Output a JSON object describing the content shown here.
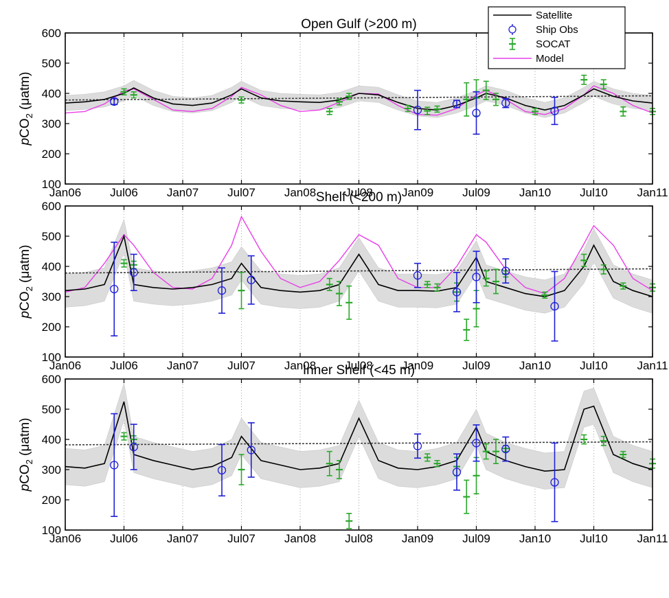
{
  "figure": {
    "legend": {
      "placement": "top-right",
      "entries": [
        {
          "label": "Satellite",
          "color": "#000000",
          "kind": "line"
        },
        {
          "label": "Ship Obs",
          "color": "#1f1fd6",
          "kind": "circle-errorbar"
        },
        {
          "label": "SOCAT",
          "color": "#2aa82a",
          "kind": "plus-errorbar"
        },
        {
          "label": "Model",
          "color": "#e83ee8",
          "kind": "line"
        }
      ]
    },
    "ylabel_prefix": "pCO",
    "ylabel_sub": "2",
    "ylabel_unit": " (μatm)",
    "colors": {
      "satellite": "#000000",
      "ship": "#1f1fd6",
      "socat": "#2aa82a",
      "model": "#e83ee8",
      "band": "#dcdcdc",
      "trend": "#404040"
    }
  },
  "chart_data": [
    {
      "type": "line",
      "title": "Open Gulf (>200 m)",
      "ylabel": "pCO2 (μatm)",
      "ylim": [
        100,
        600
      ],
      "yticks": [
        100,
        200,
        300,
        400,
        500,
        600
      ],
      "xlim": [
        "2006-01",
        "2011-01"
      ],
      "xticks": [
        "Jan06",
        "Jul06",
        "Jan07",
        "Jul07",
        "Jan08",
        "Jul08",
        "Jan09",
        "Jul09",
        "Jan10",
        "Jul10",
        "Jan11"
      ],
      "trend": {
        "start": 378,
        "end": 392
      },
      "series": [
        {
          "name": "Satellite",
          "band": 25,
          "x": [
            "2006-01",
            "2006-03",
            "2006-05",
            "2006-07",
            "2006-08",
            "2006-10",
            "2006-12",
            "2007-02",
            "2007-04",
            "2007-06",
            "2007-07",
            "2007-09",
            "2007-11",
            "2008-01",
            "2008-03",
            "2008-05",
            "2008-07",
            "2008-09",
            "2008-11",
            "2009-01",
            "2009-03",
            "2009-05",
            "2009-07",
            "2009-08",
            "2009-10",
            "2009-12",
            "2010-02",
            "2010-04",
            "2010-06",
            "2010-07",
            "2010-09",
            "2010-11",
            "2011-01"
          ],
          "y": [
            368,
            372,
            380,
            400,
            418,
            385,
            365,
            360,
            368,
            395,
            415,
            385,
            375,
            372,
            370,
            378,
            400,
            395,
            370,
            350,
            345,
            360,
            385,
            400,
            385,
            360,
            345,
            360,
            395,
            415,
            390,
            375,
            368
          ]
        },
        {
          "name": "Model",
          "x": [
            "2006-01",
            "2006-03",
            "2006-05",
            "2006-07",
            "2006-08",
            "2006-10",
            "2006-12",
            "2007-02",
            "2007-04",
            "2007-06",
            "2007-07",
            "2007-09",
            "2007-11",
            "2008-01",
            "2008-03",
            "2008-05",
            "2008-07",
            "2008-09",
            "2008-11",
            "2009-01",
            "2009-03",
            "2009-05",
            "2009-07",
            "2009-08",
            "2009-10",
            "2009-12",
            "2010-02",
            "2010-04",
            "2010-06",
            "2010-07",
            "2010-09",
            "2010-11",
            "2011-01"
          ],
          "y": [
            335,
            340,
            365,
            408,
            415,
            380,
            345,
            340,
            350,
            390,
            420,
            395,
            360,
            340,
            345,
            370,
            400,
            398,
            360,
            330,
            328,
            350,
            395,
            410,
            380,
            340,
            330,
            350,
            395,
            425,
            400,
            360,
            335
          ]
        },
        {
          "name": "Ship Obs",
          "x": [
            "2006-06",
            "2009-01",
            "2009-05",
            "2009-07",
            "2009-10",
            "2010-03"
          ],
          "y": [
            373,
            345,
            365,
            335,
            368,
            342
          ],
          "err": [
            10,
            65,
            12,
            70,
            15,
            45
          ]
        },
        {
          "name": "SOCAT",
          "x": [
            "2006-07",
            "2006-08",
            "2007-07",
            "2008-04",
            "2008-05",
            "2008-06",
            "2008-12",
            "2009-02",
            "2009-03",
            "2009-06",
            "2009-07",
            "2009-08",
            "2009-09",
            "2010-01",
            "2010-06",
            "2010-08",
            "2010-10",
            "2011-01"
          ],
          "y": [
            405,
            395,
            378,
            340,
            372,
            390,
            350,
            342,
            348,
            380,
            385,
            410,
            380,
            340,
            445,
            430,
            340,
            340
          ],
          "err": [
            10,
            10,
            10,
            10,
            10,
            10,
            10,
            12,
            10,
            55,
            60,
            30,
            20,
            10,
            15,
            15,
            15,
            10
          ]
        }
      ]
    },
    {
      "type": "line",
      "title": "Shelf (<200 m)",
      "ylabel": "pCO2 (μatm)",
      "ylim": [
        100,
        600
      ],
      "yticks": [
        100,
        200,
        300,
        400,
        500,
        600
      ],
      "xlim": [
        "2006-01",
        "2011-01"
      ],
      "xticks": [
        "Jan06",
        "Jul06",
        "Jan07",
        "Jul07",
        "Jan08",
        "Jul08",
        "Jan09",
        "Jul09",
        "Jan10",
        "Jul10",
        "Jan11"
      ],
      "trend": {
        "start": 378,
        "end": 392
      },
      "series": [
        {
          "name": "Satellite",
          "band": 55,
          "x": [
            "2006-01",
            "2006-03",
            "2006-05",
            "2006-07",
            "2006-08",
            "2006-10",
            "2006-12",
            "2007-02",
            "2007-04",
            "2007-06",
            "2007-07",
            "2007-09",
            "2007-11",
            "2008-01",
            "2008-03",
            "2008-05",
            "2008-07",
            "2008-09",
            "2008-11",
            "2009-01",
            "2009-03",
            "2009-05",
            "2009-07",
            "2009-08",
            "2009-10",
            "2009-12",
            "2010-02",
            "2010-04",
            "2010-06",
            "2010-07",
            "2010-09",
            "2010-11",
            "2011-01"
          ],
          "y": [
            320,
            325,
            340,
            500,
            340,
            330,
            325,
            330,
            340,
            360,
            410,
            330,
            320,
            315,
            320,
            340,
            440,
            340,
            320,
            320,
            318,
            330,
            430,
            350,
            330,
            310,
            300,
            320,
            400,
            470,
            350,
            320,
            300
          ]
        },
        {
          "name": "Model",
          "x": [
            "2006-01",
            "2006-03",
            "2006-05",
            "2006-07",
            "2006-08",
            "2006-10",
            "2006-12",
            "2007-02",
            "2007-04",
            "2007-06",
            "2007-07",
            "2007-09",
            "2007-11",
            "2008-01",
            "2008-03",
            "2008-05",
            "2008-07",
            "2008-09",
            "2008-11",
            "2009-01",
            "2009-03",
            "2009-05",
            "2009-07",
            "2009-08",
            "2009-10",
            "2009-12",
            "2010-02",
            "2010-04",
            "2010-06",
            "2010-07",
            "2010-09",
            "2010-11",
            "2011-01"
          ],
          "y": [
            315,
            330,
            410,
            505,
            470,
            380,
            330,
            325,
            360,
            470,
            565,
            450,
            360,
            330,
            350,
            420,
            505,
            470,
            360,
            330,
            330,
            400,
            505,
            480,
            390,
            330,
            310,
            360,
            475,
            535,
            470,
            360,
            320
          ]
        },
        {
          "name": "Ship Obs",
          "x": [
            "2006-06",
            "2006-08",
            "2007-05",
            "2007-08",
            "2009-01",
            "2009-05",
            "2009-07",
            "2009-10",
            "2010-03"
          ],
          "y": [
            325,
            380,
            320,
            355,
            370,
            315,
            365,
            385,
            268
          ],
          "err": [
            155,
            60,
            75,
            80,
            40,
            65,
            85,
            40,
            115
          ]
        },
        {
          "name": "SOCAT",
          "x": [
            "2006-07",
            "2006-08",
            "2007-07",
            "2008-04",
            "2008-05",
            "2008-06",
            "2009-02",
            "2009-03",
            "2009-05",
            "2009-06",
            "2009-07",
            "2009-08",
            "2009-09",
            "2009-10",
            "2010-02",
            "2010-06",
            "2010-08",
            "2010-10",
            "2011-01"
          ],
          "y": [
            410,
            405,
            320,
            340,
            310,
            280,
            340,
            330,
            315,
            190,
            260,
            360,
            350,
            375,
            305,
            420,
            390,
            335,
            330
          ],
          "err": [
            12,
            12,
            60,
            20,
            40,
            55,
            10,
            12,
            30,
            35,
            60,
            25,
            40,
            10,
            10,
            20,
            15,
            10,
            12
          ]
        }
      ]
    },
    {
      "type": "line",
      "title": "Inner Shelf (<45 m)",
      "ylabel": "pCO2 (μatm)",
      "ylim": [
        100,
        600
      ],
      "yticks": [
        100,
        200,
        300,
        400,
        500,
        600
      ],
      "xlim": [
        "2006-01",
        "2011-01"
      ],
      "xticks": [
        "Jan06",
        "Jul06",
        "Jan07",
        "Jul07",
        "Jan08",
        "Jul08",
        "Jan09",
        "Jul09",
        "Jan10",
        "Jul10",
        "Jan11"
      ],
      "trend": {
        "start": 382,
        "end": 392
      },
      "series": [
        {
          "name": "Satellite",
          "band": 60,
          "x": [
            "2006-01",
            "2006-03",
            "2006-05",
            "2006-07",
            "2006-08",
            "2006-10",
            "2006-12",
            "2007-02",
            "2007-04",
            "2007-06",
            "2007-07",
            "2007-09",
            "2007-11",
            "2008-01",
            "2008-03",
            "2008-05",
            "2008-07",
            "2008-09",
            "2008-11",
            "2009-01",
            "2009-03",
            "2009-05",
            "2009-07",
            "2009-08",
            "2009-10",
            "2009-12",
            "2010-02",
            "2010-04",
            "2010-06",
            "2010-07",
            "2010-09",
            "2010-11",
            "2011-01"
          ],
          "y": [
            310,
            305,
            320,
            525,
            350,
            330,
            315,
            300,
            310,
            340,
            410,
            330,
            315,
            300,
            305,
            320,
            470,
            330,
            305,
            300,
            310,
            330,
            440,
            360,
            330,
            310,
            295,
            300,
            500,
            510,
            350,
            320,
            300
          ]
        },
        {
          "name": "Ship Obs",
          "x": [
            "2006-06",
            "2006-08",
            "2007-05",
            "2007-08",
            "2009-01",
            "2009-05",
            "2009-07",
            "2009-10",
            "2010-03"
          ],
          "y": [
            315,
            375,
            298,
            365,
            378,
            292,
            388,
            368,
            258
          ],
          "err": [
            170,
            75,
            85,
            90,
            40,
            60,
            60,
            40,
            130
          ]
        },
        {
          "name": "SOCAT",
          "x": [
            "2006-07",
            "2006-08",
            "2007-07",
            "2008-04",
            "2008-05",
            "2008-06",
            "2009-02",
            "2009-03",
            "2009-05",
            "2009-06",
            "2009-07",
            "2009-08",
            "2009-09",
            "2009-10",
            "2010-06",
            "2010-08",
            "2010-10",
            "2011-01"
          ],
          "y": [
            410,
            400,
            300,
            320,
            300,
            130,
            340,
            320,
            310,
            210,
            280,
            360,
            360,
            370,
            400,
            395,
            350,
            320
          ],
          "err": [
            12,
            12,
            50,
            40,
            30,
            25,
            12,
            10,
            30,
            55,
            60,
            25,
            40,
            10,
            15,
            15,
            10,
            15
          ]
        }
      ]
    }
  ]
}
